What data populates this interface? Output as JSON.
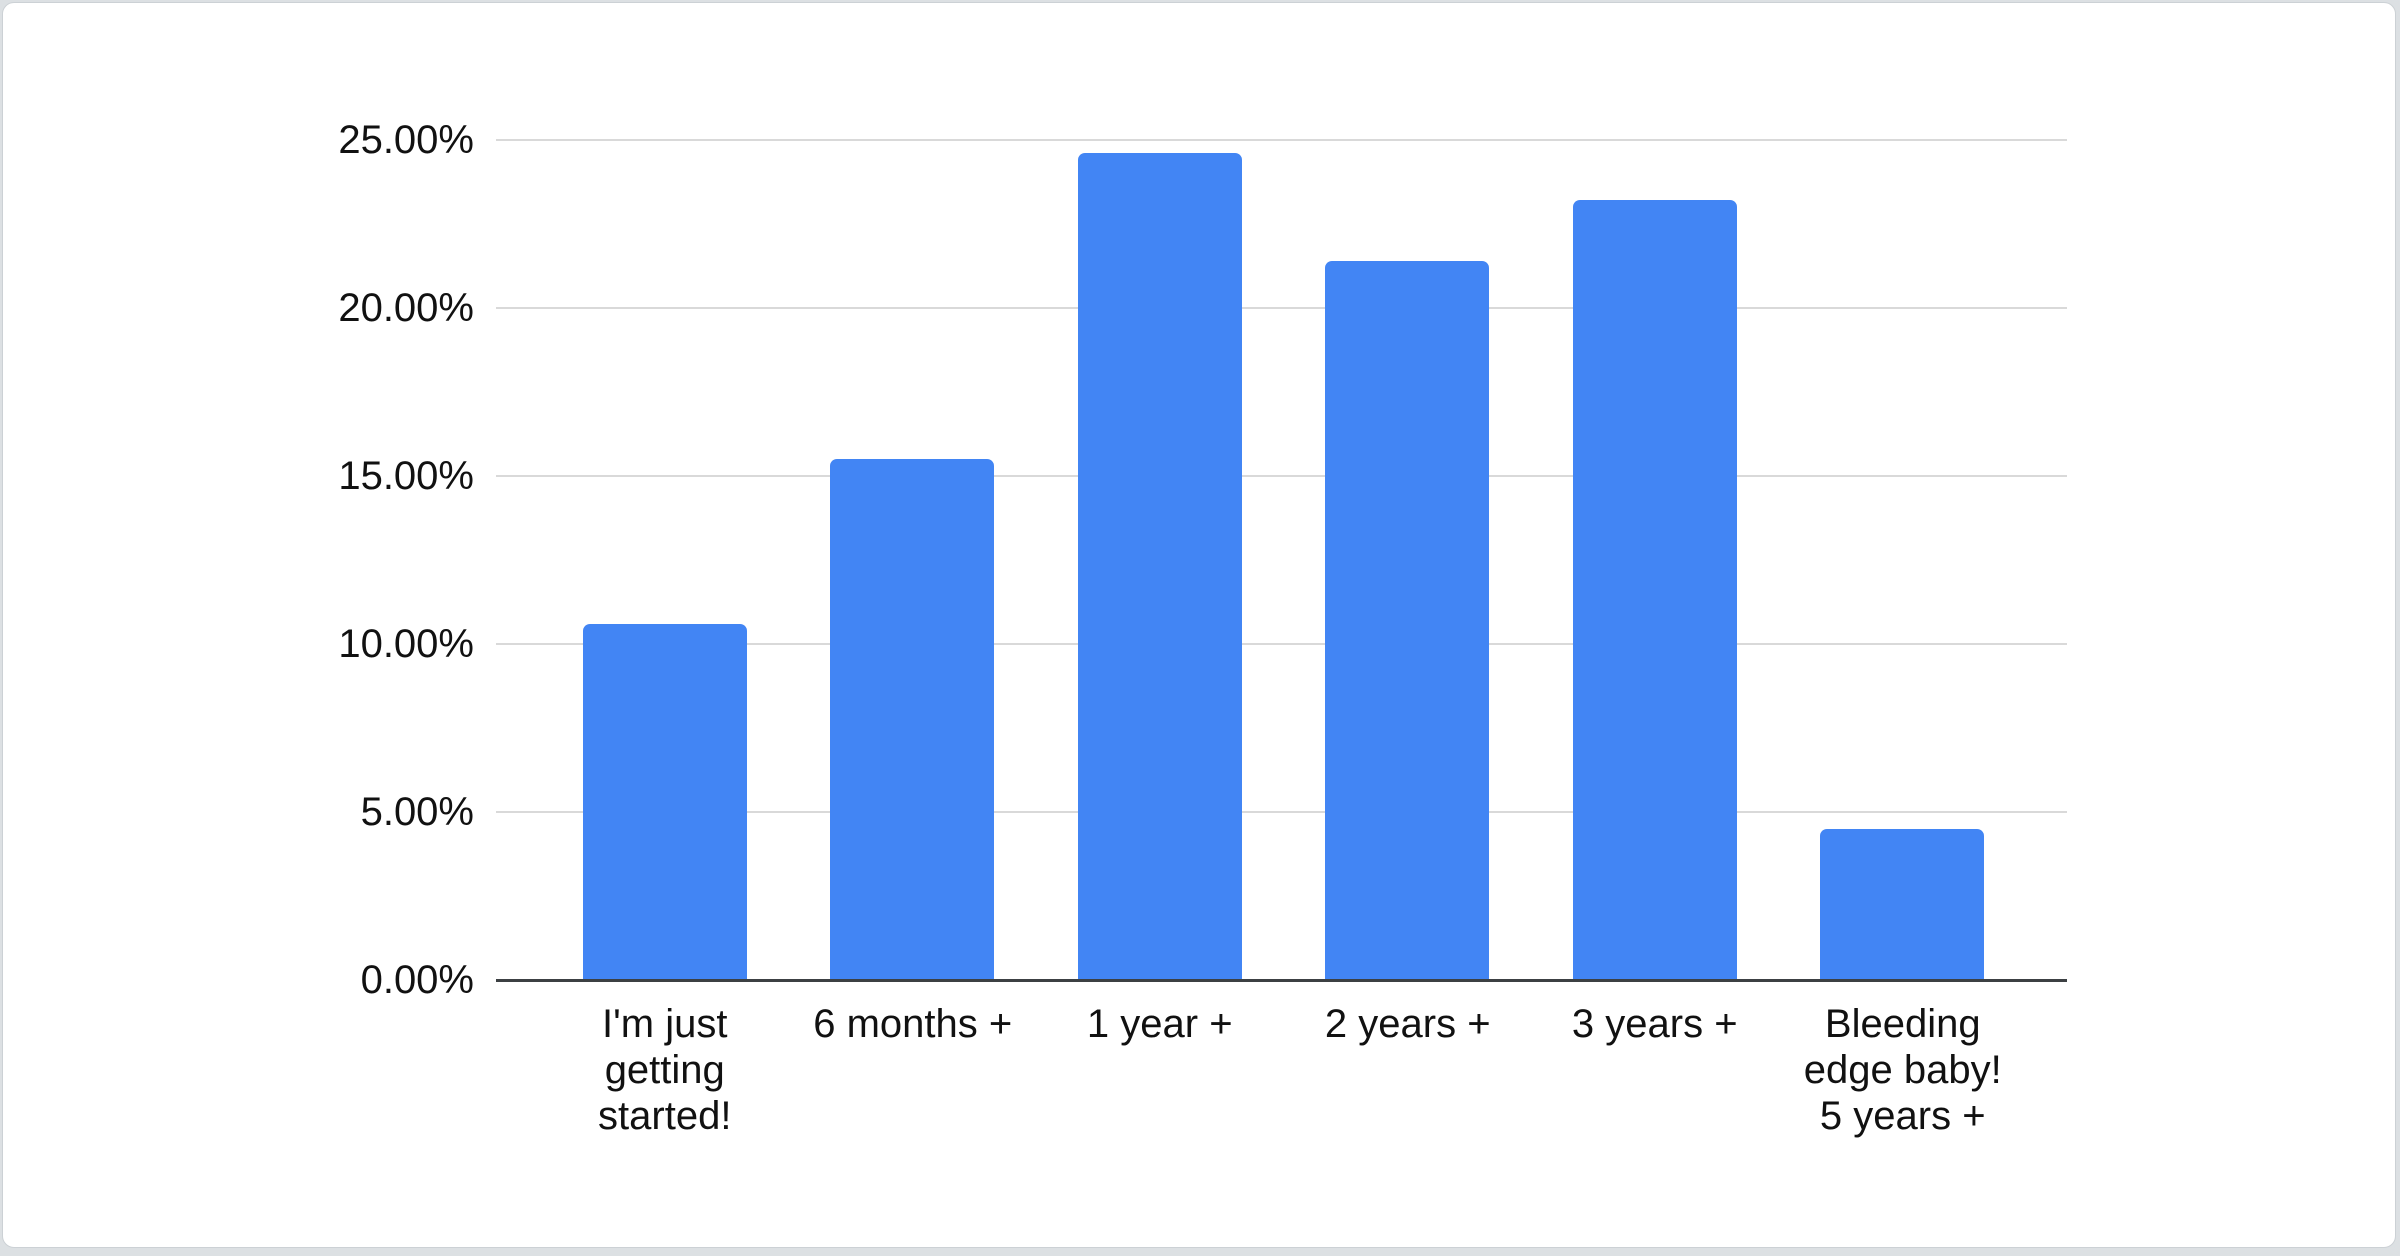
{
  "page": {
    "background_color": "#dce0e3",
    "card_background": "#ffffff",
    "card_border_color": "#ccd1d5"
  },
  "chart_data": {
    "type": "bar",
    "title": "",
    "categories": [
      "I'm just getting started!",
      "6 months +",
      "1 year +",
      "2 years +",
      "3 years +",
      "Bleeding edge baby! 5 years +"
    ],
    "categories_wrapped": [
      [
        "I'm just",
        "getting",
        "started!"
      ],
      [
        "6 months +"
      ],
      [
        "1 year +"
      ],
      [
        "2 years +"
      ],
      [
        "3 years +"
      ],
      [
        "Bleeding",
        "edge baby!",
        "5 years +"
      ]
    ],
    "values": [
      10.6,
      15.5,
      24.6,
      21.4,
      23.2,
      4.5
    ],
    "unit": "%",
    "bar_color": "#4285f4",
    "xlabel": "",
    "ylabel": "",
    "legend": "none",
    "grid": true,
    "y_axis": {
      "min": 0,
      "max": 25,
      "ticks": [
        {
          "value": 0,
          "label": "0.00%"
        },
        {
          "value": 5,
          "label": "5.00%"
        },
        {
          "value": 10,
          "label": "10.00%"
        },
        {
          "value": 15,
          "label": "15.00%"
        },
        {
          "value": 20,
          "label": "20.00%"
        },
        {
          "value": 25,
          "label": "25.00%"
        }
      ],
      "gridline_color": "#d9d9d9",
      "axis_line_color": "#3c4043",
      "label_color": "#111111"
    }
  }
}
